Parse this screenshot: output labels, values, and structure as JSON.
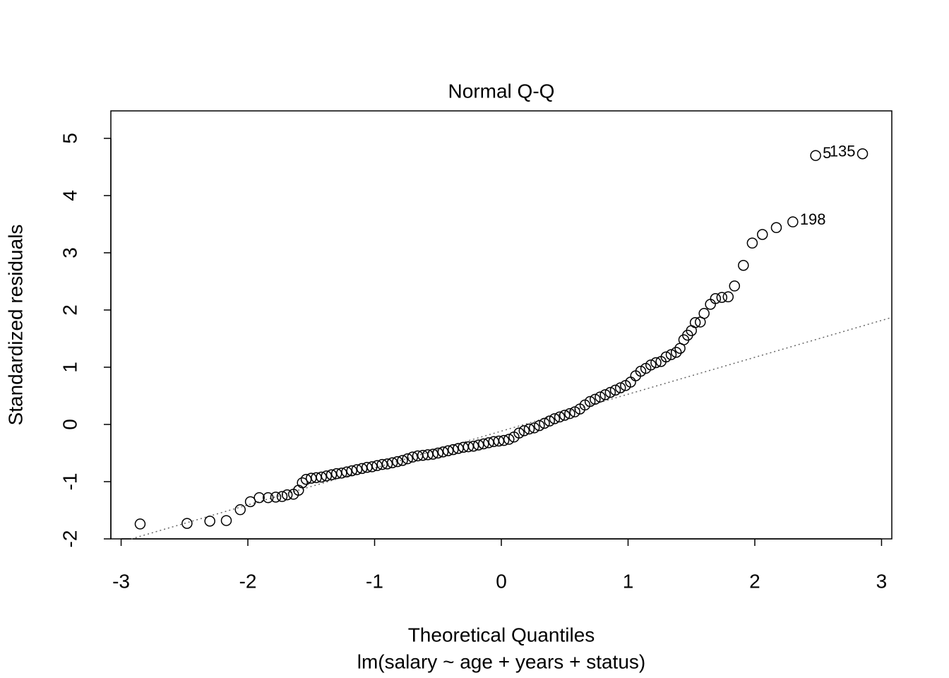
{
  "chart_data": {
    "type": "scatter",
    "title": "Normal Q-Q",
    "x_label": "Theoretical Quantiles",
    "subtitle": "lm(salary ~ age + years + status)",
    "y_label": "Standardized residuals",
    "xlim": [
      -3.081,
      3.081
    ],
    "ylim": [
      -2.0,
      5.48
    ],
    "xticks": [
      -3,
      -2,
      -1,
      0,
      1,
      2,
      3
    ],
    "yticks": [
      -2,
      -1,
      0,
      1,
      2,
      3,
      4,
      5
    ],
    "color": "#000000",
    "reference_line": {
      "intercept": -0.117,
      "slope": 0.645,
      "color": "#666666"
    },
    "x": [
      -2.85,
      -2.48,
      -2.3,
      -2.17,
      -2.06,
      -1.98,
      -1.91,
      -1.84,
      -1.78,
      -1.73,
      -1.69,
      -1.64,
      -1.6,
      -1.57,
      -1.54,
      -1.5,
      -1.46,
      -1.42,
      -1.38,
      -1.34,
      -1.3,
      -1.26,
      -1.22,
      -1.18,
      -1.14,
      -1.1,
      -1.06,
      -1.02,
      -0.98,
      -0.94,
      -0.9,
      -0.86,
      -0.82,
      -0.78,
      -0.74,
      -0.7,
      -0.66,
      -0.62,
      -0.58,
      -0.54,
      -0.5,
      -0.46,
      -0.42,
      -0.38,
      -0.34,
      -0.3,
      -0.26,
      -0.22,
      -0.18,
      -0.14,
      -0.1,
      -0.06,
      -0.02,
      0.02,
      0.06,
      0.1,
      0.14,
      0.18,
      0.22,
      0.26,
      0.3,
      0.34,
      0.38,
      0.42,
      0.46,
      0.5,
      0.54,
      0.58,
      0.62,
      0.66,
      0.7,
      0.74,
      0.78,
      0.82,
      0.86,
      0.9,
      0.94,
      0.98,
      1.02,
      1.06,
      1.1,
      1.14,
      1.18,
      1.22,
      1.26,
      1.3,
      1.34,
      1.38,
      1.41,
      1.44,
      1.47,
      1.5,
      1.53,
      1.57,
      1.6,
      1.65,
      1.69,
      1.74,
      1.79,
      1.84,
      1.91,
      1.98,
      2.06,
      2.17
    ],
    "values": [
      -1.74,
      -1.73,
      -1.69,
      -1.68,
      -1.49,
      -1.35,
      -1.28,
      -1.28,
      -1.27,
      -1.26,
      -1.23,
      -1.22,
      -1.15,
      -1.02,
      -0.96,
      -0.94,
      -0.93,
      -0.92,
      -0.9,
      -0.88,
      -0.86,
      -0.85,
      -0.83,
      -0.81,
      -0.79,
      -0.77,
      -0.75,
      -0.74,
      -0.72,
      -0.7,
      -0.69,
      -0.67,
      -0.65,
      -0.63,
      -0.6,
      -0.57,
      -0.55,
      -0.54,
      -0.53,
      -0.52,
      -0.5,
      -0.48,
      -0.46,
      -0.44,
      -0.42,
      -0.4,
      -0.39,
      -0.38,
      -0.36,
      -0.34,
      -0.32,
      -0.3,
      -0.29,
      -0.28,
      -0.26,
      -0.22,
      -0.15,
      -0.11,
      -0.08,
      -0.06,
      -0.02,
      0.02,
      0.06,
      0.1,
      0.13,
      0.16,
      0.19,
      0.22,
      0.27,
      0.34,
      0.4,
      0.44,
      0.48,
      0.52,
      0.56,
      0.6,
      0.64,
      0.68,
      0.74,
      0.85,
      0.93,
      0.98,
      1.04,
      1.08,
      1.1,
      1.18,
      1.22,
      1.26,
      1.33,
      1.48,
      1.56,
      1.64,
      1.78,
      1.79,
      1.94,
      2.1,
      2.2,
      2.22,
      2.23,
      2.42,
      2.78,
      3.17,
      3.32,
      3.44
    ],
    "labeled_points": [
      {
        "x": 2.3,
        "y": 3.54,
        "label": "198",
        "side": "right"
      },
      {
        "x": 2.48,
        "y": 4.7,
        "label": "5",
        "side": "right"
      },
      {
        "x": 2.85,
        "y": 4.73,
        "label": "135",
        "side": "left"
      }
    ]
  }
}
